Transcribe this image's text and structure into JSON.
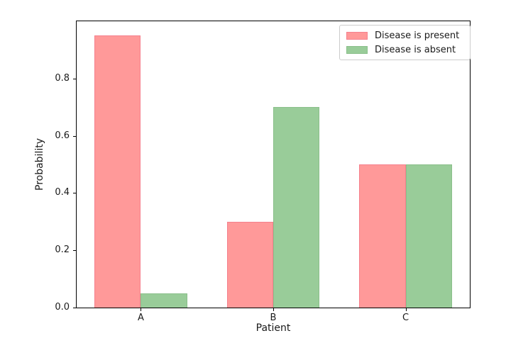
{
  "figure": {
    "background_color": "#ffffff",
    "axes_border_color": "#000000",
    "text_color": "#1a1a1a"
  },
  "chart_data": {
    "type": "bar",
    "title": "",
    "xlabel": "Patient",
    "ylabel": "Probability",
    "categories": [
      "A",
      "B",
      "C"
    ],
    "series": [
      {
        "key": "present",
        "name": "Disease is present",
        "color": "#ff9999",
        "edge_color": "#f5808d",
        "values": [
          0.95,
          0.3,
          0.5
        ]
      },
      {
        "key": "absent",
        "name": "Disease is absent",
        "color": "#99cc99",
        "edge_color": "#8abf8a",
        "values": [
          0.05,
          0.7,
          0.5
        ]
      }
    ],
    "ylim": [
      0.0,
      1.0
    ],
    "yticks": [
      0.0,
      0.2,
      0.4,
      0.6,
      0.8
    ],
    "ytick_labels": [
      "0.0",
      "0.2",
      "0.4",
      "0.6",
      "0.8"
    ],
    "bar_width_units": 0.35,
    "xlim": [
      -0.485,
      2.485
    ],
    "grid": false,
    "legend_position": "upper right"
  },
  "legend": {
    "border_color": "#cccccc",
    "background": "rgba(255,255,255,0.9)"
  }
}
